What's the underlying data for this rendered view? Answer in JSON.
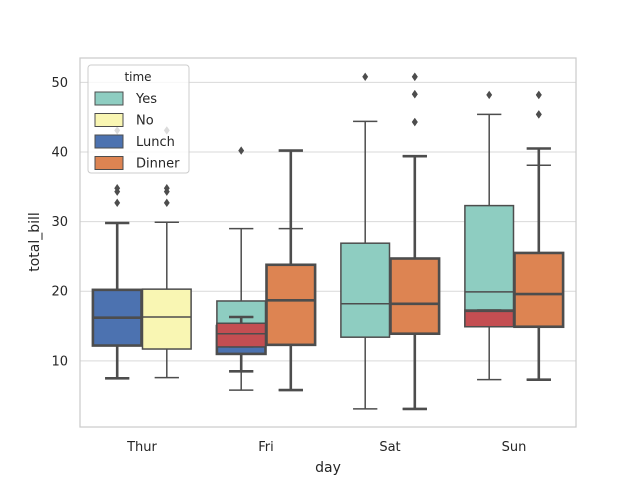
{
  "chart_data": {
    "type": "box",
    "xlabel": "day",
    "ylabel": "total_bill",
    "categories": [
      "Thur",
      "Fri",
      "Sat",
      "Sun"
    ],
    "ylim": [
      0.5,
      53.5
    ],
    "yticks": [
      10,
      20,
      30,
      40,
      50
    ],
    "grid": "horizontal",
    "legend": {
      "title": "time",
      "placement": "upper-left",
      "entries": [
        {
          "label": "Yes",
          "color": "#8ecdc1"
        },
        {
          "label": "No",
          "color": "#f9f6b3"
        },
        {
          "label": "Lunch",
          "color": "#4c72b0"
        },
        {
          "label": "Dinner",
          "color": "#dd8452"
        }
      ]
    },
    "series": [
      {
        "name": "Yes",
        "color": "#8ecdc1",
        "lineColor": "#4d4d4d",
        "lineWidth": 1.5,
        "offset": -0.2,
        "width": 0.4,
        "boxes": [
          null,
          {
            "whislo": 5.8,
            "q1": 12.0,
            "med": 15.0,
            "q3": 18.6,
            "whishi": 29.0,
            "fliers": [
              40.2
            ]
          },
          {
            "whislo": 3.1,
            "q1": 13.4,
            "med": 18.2,
            "q3": 26.9,
            "whishi": 44.4,
            "fliers": [
              50.8
            ]
          },
          {
            "whislo": 7.3,
            "q1": 14.9,
            "med": 19.9,
            "q3": 32.3,
            "whishi": 45.4,
            "fliers": [
              48.2
            ]
          }
        ]
      },
      {
        "name": "No",
        "color": "#f9f6b3",
        "lineColor": "#4d4d4d",
        "lineWidth": 1.5,
        "offset": 0.2,
        "width": 0.4,
        "boxes": [
          {
            "whislo": 7.6,
            "q1": 11.7,
            "med": 16.3,
            "q3": 20.3,
            "whishi": 29.9,
            "fliers": [
              32.7,
              34.3,
              34.8,
              43.1
            ]
          },
          {
            "whislo": 5.8,
            "q1": 12.3,
            "med": 15.4,
            "q3": 22.8,
            "whishi": 29.0,
            "fliers": []
          },
          {
            "whislo": 3.1,
            "q1": 14.0,
            "med": 17.8,
            "q3": 24.7,
            "whishi": 39.4,
            "fliers": [
              44.3,
              48.3,
              50.8
            ]
          },
          {
            "whislo": 7.3,
            "q1": 15.0,
            "med": 18.6,
            "q3": 24.3,
            "whishi": 38.1,
            "fliers": [
              45.4,
              48.2
            ]
          }
        ]
      },
      {
        "name": "Lunch",
        "color": "#4c72b0",
        "lineColor": "#4d4d4d",
        "lineWidth": 2.6,
        "offset": -0.2,
        "width": 0.4,
        "boxes": [
          {
            "whislo": 7.5,
            "q1": 12.2,
            "med": 16.2,
            "q3": 20.2,
            "whishi": 29.8,
            "fliers": [
              32.7,
              34.3,
              34.8,
              43.1
            ]
          },
          {
            "whislo": 8.5,
            "q1": 11.0,
            "med": 13.4,
            "q3": 15.0,
            "whishi": 16.3,
            "fliers": []
          },
          null,
          null
        ]
      },
      {
        "name": "Dinner",
        "color": "#dd8452",
        "lineColor": "#4d4d4d",
        "lineWidth": 2.6,
        "offset": 0.2,
        "width": 0.4,
        "boxes": [
          null,
          {
            "whislo": 5.8,
            "q1": 12.3,
            "med": 18.7,
            "q3": 23.8,
            "whishi": 40.2,
            "fliers": []
          },
          {
            "whislo": 3.1,
            "q1": 13.9,
            "med": 18.2,
            "q3": 24.7,
            "whishi": 39.4,
            "fliers": [
              44.3,
              48.3,
              50.8
            ]
          },
          {
            "whislo": 7.3,
            "q1": 14.9,
            "med": 19.6,
            "q3": 25.5,
            "whishi": 40.5,
            "fliers": [
              45.4,
              48.2
            ]
          }
        ]
      },
      {
        "name": "Yes",
        "color": "#c44e52",
        "lineColor": "#4d4d4d",
        "lineWidth": 1.5,
        "offset": -0.2,
        "width": 0.4,
        "boxes": [
          null,
          {
            "whislo": 12.0,
            "q1": 12.0,
            "med": 13.9,
            "q3": 15.4,
            "whishi": 16.3,
            "fliers": []
          },
          null,
          {
            "whislo": 14.9,
            "q1": 14.9,
            "med": 17.1,
            "q3": 17.3,
            "whishi": 17.3,
            "fliers": []
          }
        ]
      }
    ]
  }
}
